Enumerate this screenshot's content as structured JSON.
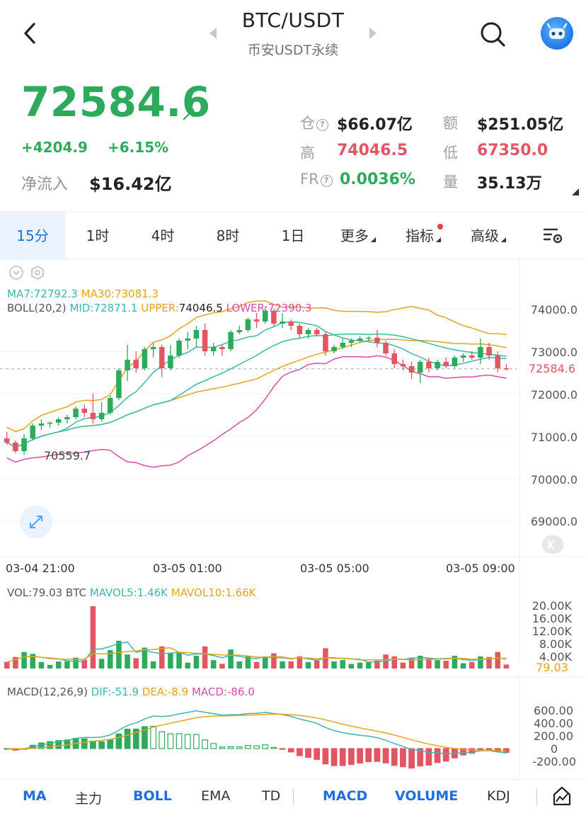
{
  "header": {
    "title": "BTC/USDT",
    "subtitle": "币安USDT永续"
  },
  "ticker": {
    "price": "72584.6",
    "change_abs": "+4204.9",
    "change_pct": "+6.15%",
    "netflow_label": "净流入",
    "netflow_value": "$16.42亿",
    "stats": {
      "open_interest_label": "仓",
      "open_interest_value": "$66.07亿",
      "amount_label": "额",
      "amount_value": "$251.05亿",
      "high_label": "高",
      "high_value": "74046.5",
      "low_label": "低",
      "low_value": "67350.0",
      "fr_label": "FR",
      "fr_value": "0.0036%",
      "volume_label": "量",
      "volume_value": "35.13万"
    },
    "colors": {
      "up": "#2eaa5d",
      "down": "#e25563",
      "accent": "#1f6fe0"
    }
  },
  "tabs": [
    {
      "label": "15分",
      "active": true
    },
    {
      "label": "1时"
    },
    {
      "label": "4时"
    },
    {
      "label": "8时"
    },
    {
      "label": "1日"
    },
    {
      "label": "更多"
    },
    {
      "label": "指标"
    },
    {
      "label": "高级"
    }
  ],
  "chart_data": {
    "type": "candlestick",
    "indicators_text": {
      "ma7": "MA7:72792.3",
      "ma30": "MA30:73081.3",
      "boll": "BOLL(20,2)",
      "mid": "MID:72871.1",
      "upper": "UPPER:",
      "upper_val": "74046.5",
      "lower": "LOWER:72390.3",
      "low_marker": "70559.7"
    },
    "y_ticks": [
      "74000.0",
      "73000.0",
      "72000.0",
      "71000.0",
      "70000.0",
      "69000.0"
    ],
    "last_price": "72584.6",
    "x_ticks": [
      "03-04 21:00",
      "03-05 01:00",
      "03-05 05:00",
      "03-05 09:00"
    ],
    "candles": [
      {
        "o": 70950,
        "h": 71100,
        "l": 70800,
        "c": 70850
      },
      {
        "o": 70850,
        "h": 70900,
        "l": 70600,
        "c": 70650
      },
      {
        "o": 70650,
        "h": 71050,
        "l": 70560,
        "c": 70950
      },
      {
        "o": 70950,
        "h": 71300,
        "l": 70900,
        "c": 71250
      },
      {
        "o": 71250,
        "h": 71400,
        "l": 71150,
        "c": 71300
      },
      {
        "o": 71300,
        "h": 71350,
        "l": 71200,
        "c": 71320
      },
      {
        "o": 71320,
        "h": 71450,
        "l": 71250,
        "c": 71400
      },
      {
        "o": 71400,
        "h": 71500,
        "l": 71300,
        "c": 71450
      },
      {
        "o": 71450,
        "h": 71700,
        "l": 71400,
        "c": 71650
      },
      {
        "o": 71650,
        "h": 71750,
        "l": 71450,
        "c": 71550
      },
      {
        "o": 71550,
        "h": 72000,
        "l": 71300,
        "c": 71400
      },
      {
        "o": 71400,
        "h": 71800,
        "l": 71350,
        "c": 71550
      },
      {
        "o": 71550,
        "h": 71950,
        "l": 71500,
        "c": 71900
      },
      {
        "o": 71900,
        "h": 72600,
        "l": 71850,
        "c": 72550
      },
      {
        "o": 72550,
        "h": 73150,
        "l": 72300,
        "c": 72800
      },
      {
        "o": 72800,
        "h": 73000,
        "l": 72500,
        "c": 72600
      },
      {
        "o": 72600,
        "h": 73100,
        "l": 72550,
        "c": 73050
      },
      {
        "o": 73050,
        "h": 73200,
        "l": 72850,
        "c": 73100
      },
      {
        "o": 73100,
        "h": 73150,
        "l": 72400,
        "c": 72600
      },
      {
        "o": 72600,
        "h": 73150,
        "l": 72550,
        "c": 72900
      },
      {
        "o": 72900,
        "h": 73300,
        "l": 72850,
        "c": 73250
      },
      {
        "o": 73250,
        "h": 73450,
        "l": 73050,
        "c": 73300
      },
      {
        "o": 73300,
        "h": 73600,
        "l": 73100,
        "c": 73500
      },
      {
        "o": 73500,
        "h": 73650,
        "l": 72900,
        "c": 73000
      },
      {
        "o": 73000,
        "h": 73200,
        "l": 72900,
        "c": 73100
      },
      {
        "o": 73100,
        "h": 73150,
        "l": 72900,
        "c": 73050
      },
      {
        "o": 73050,
        "h": 73500,
        "l": 73000,
        "c": 73450
      },
      {
        "o": 73450,
        "h": 73600,
        "l": 73400,
        "c": 73500
      },
      {
        "o": 73500,
        "h": 73800,
        "l": 73450,
        "c": 73750
      },
      {
        "o": 73750,
        "h": 73900,
        "l": 73550,
        "c": 73700
      },
      {
        "o": 73700,
        "h": 74046,
        "l": 73650,
        "c": 73950
      },
      {
        "o": 73950,
        "h": 74000,
        "l": 73600,
        "c": 73650
      },
      {
        "o": 73650,
        "h": 73900,
        "l": 73550,
        "c": 73700
      },
      {
        "o": 73700,
        "h": 73750,
        "l": 73500,
        "c": 73600
      },
      {
        "o": 73600,
        "h": 73650,
        "l": 73300,
        "c": 73400
      },
      {
        "o": 73400,
        "h": 73550,
        "l": 73300,
        "c": 73500
      },
      {
        "o": 73500,
        "h": 73550,
        "l": 73350,
        "c": 73400
      },
      {
        "o": 73400,
        "h": 73450,
        "l": 72900,
        "c": 73000
      },
      {
        "o": 73000,
        "h": 73150,
        "l": 72950,
        "c": 73100
      },
      {
        "o": 73100,
        "h": 73300,
        "l": 73050,
        "c": 73200
      },
      {
        "o": 73200,
        "h": 73300,
        "l": 73100,
        "c": 73250
      },
      {
        "o": 73250,
        "h": 73350,
        "l": 73200,
        "c": 73300
      },
      {
        "o": 73300,
        "h": 73350,
        "l": 73250,
        "c": 73320
      },
      {
        "o": 73320,
        "h": 73500,
        "l": 73100,
        "c": 73200
      },
      {
        "o": 73200,
        "h": 73250,
        "l": 72900,
        "c": 72950
      },
      {
        "o": 72950,
        "h": 73050,
        "l": 72600,
        "c": 72700
      },
      {
        "o": 72700,
        "h": 72800,
        "l": 72550,
        "c": 72650
      },
      {
        "o": 72650,
        "h": 72750,
        "l": 72350,
        "c": 72500
      },
      {
        "o": 72500,
        "h": 72800,
        "l": 72250,
        "c": 72750
      },
      {
        "o": 72750,
        "h": 72850,
        "l": 72500,
        "c": 72600
      },
      {
        "o": 72600,
        "h": 72800,
        "l": 72550,
        "c": 72750
      },
      {
        "o": 72750,
        "h": 72850,
        "l": 72600,
        "c": 72650
      },
      {
        "o": 72650,
        "h": 72900,
        "l": 72600,
        "c": 72850
      },
      {
        "o": 72850,
        "h": 72950,
        "l": 72750,
        "c": 72900
      },
      {
        "o": 72900,
        "h": 73000,
        "l": 72800,
        "c": 72850
      },
      {
        "o": 72850,
        "h": 73300,
        "l": 72700,
        "c": 73100
      },
      {
        "o": 73100,
        "h": 73200,
        "l": 72800,
        "c": 72900
      },
      {
        "o": 72900,
        "h": 73000,
        "l": 72500,
        "c": 72600
      },
      {
        "o": 72600,
        "h": 72700,
        "l": 72550,
        "c": 72585
      }
    ],
    "volume": {
      "label": "VOL:79.03 BTC",
      "mavol5": "MAVOL5:1.46K",
      "mavol10": "MAVOL10:1.66K",
      "y_ticks": [
        "20.00K",
        "16.00K",
        "12.00K",
        "8.00K",
        "4.00K"
      ],
      "current": "79.03"
    },
    "macd": {
      "label": "MACD(12,26,9)",
      "dif": "DIF:-51.9",
      "dea": "DEA:-8.9",
      "macd": "MACD:-86.0",
      "y_ticks": [
        "600.00",
        "400.00",
        "200.00",
        "0",
        "-200.00"
      ]
    }
  },
  "bottom_tabs": [
    {
      "label": "MA",
      "active": true
    },
    {
      "label": "主力"
    },
    {
      "label": "BOLL",
      "active": true
    },
    {
      "label": "EMA"
    },
    {
      "label": "TD"
    },
    {
      "label": "MACD",
      "active": true
    },
    {
      "label": "VOLUME",
      "active": true
    },
    {
      "label": "KDJ"
    }
  ]
}
